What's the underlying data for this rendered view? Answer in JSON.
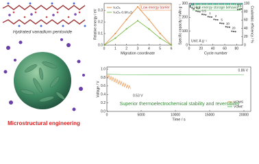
{
  "illustration": {
    "label": "Hydrated vanadium pentoxide",
    "caption": "Microstructural engineering"
  },
  "chart_data": [
    {
      "type": "line",
      "x_label": "Migration coordinate",
      "y_label": "Relative energy / eV",
      "annotations": [
        "Low energy barrier"
      ],
      "x": [
        0,
        1,
        2,
        3,
        4,
        5,
        6
      ],
      "xlim": [
        0,
        6
      ],
      "xticks": [
        0,
        1,
        2,
        3,
        4,
        5,
        6
      ],
      "ylim": [
        0,
        0.36
      ],
      "yticks": [
        {
          "value": 0,
          "label": "0.0"
        },
        0.1,
        0.2,
        0.3
      ],
      "legend": "upper left",
      "series": [
        {
          "name": "V₂O₅",
          "color": "#e8914a",
          "values": [
            0,
            0.1,
            0.22,
            0.33,
            0.22,
            0.1,
            0
          ]
        },
        {
          "name": "V₂O₅·0.9H₂O",
          "color": "#7dba4a",
          "values": [
            0,
            0.06,
            0.14,
            0.21,
            0.14,
            0.06,
            0
          ]
        }
      ]
    },
    {
      "type": "scatter",
      "x_label": "Cycle number",
      "y_label": "Specific capacity / mAh g⁻¹",
      "y2_label": "Coulombic efficiency / %",
      "annotations": [
        "High energy storage behavior",
        "Unit: A g⁻¹"
      ],
      "rate_labels": [
        "0.1",
        "0.2",
        "0.5",
        "1",
        "2",
        "5",
        "10",
        "20",
        "0.1"
      ],
      "x": [
        2,
        5,
        8,
        12,
        15,
        18,
        22,
        25,
        28,
        32,
        35,
        38,
        42,
        45,
        48,
        52,
        55,
        58,
        62,
        65,
        68,
        72,
        75,
        78,
        82,
        85,
        88
      ],
      "xlim": [
        0,
        90
      ],
      "xticks": [
        0,
        20,
        40,
        60,
        80
      ],
      "ylim": [
        0,
        300
      ],
      "yticks": [
        0,
        100,
        200,
        300
      ],
      "y2lim": [
        0,
        100
      ],
      "y2ticks": [
        0,
        20,
        40,
        60,
        80,
        100
      ],
      "series": [
        {
          "name": "Specific capacity",
          "color": "#555555",
          "values": [
            275,
            268,
            262,
            245,
            242,
            240,
            222,
            220,
            218,
            205,
            203,
            202,
            185,
            183,
            182,
            158,
            156,
            155,
            132,
            130,
            129,
            100,
            98,
            97,
            255,
            258,
            260
          ]
        },
        {
          "name": "Coulombic efficiency",
          "color": "#2a9d8f",
          "axis": "y2",
          "values": [
            95,
            98,
            99,
            99,
            99,
            99,
            99,
            99,
            99,
            99,
            99,
            99,
            99,
            99,
            99,
            99,
            99,
            99,
            99,
            99,
            99,
            99,
            99,
            99,
            98,
            99,
            99
          ]
        }
      ]
    },
    {
      "type": "line",
      "x_label": "Time / s",
      "y_label": "Voltage / V",
      "annotations": [
        "0.86 V",
        "0.53 V",
        "Superior thermoelectrochemical stability and reversibility"
      ],
      "xlim": [
        0,
        21000
      ],
      "xticks": [
        0,
        5000,
        10000,
        15000,
        20000
      ],
      "ylim": [
        0,
        1.05
      ],
      "yticks": [
        {
          "value": 0,
          "label": "0.0"
        },
        0.2,
        0.4,
        0.6,
        0.8,
        {
          "value": 1,
          "label": "1.0"
        }
      ],
      "legend": "lower right",
      "series": [
        {
          "name": "VOMS",
          "color": "#e8914a",
          "x": [
            0,
            150,
            300,
            450,
            600,
            750,
            900,
            1050,
            1200,
            1350,
            1500,
            1650,
            1800,
            1950,
            2100,
            2250,
            2400,
            2550,
            2700,
            2850,
            3000,
            3150,
            3300,
            3450
          ],
          "values": [
            0.88,
            0.77,
            0.86,
            0.75,
            0.83,
            0.72,
            0.81,
            0.7,
            0.78,
            0.67,
            0.76,
            0.65,
            0.73,
            0.63,
            0.71,
            0.6,
            0.68,
            0.58,
            0.66,
            0.56,
            0.63,
            0.54,
            0.61,
            0.53
          ]
        },
        {
          "name": "VOMF",
          "color": "#5cb85c",
          "x": [
            0,
            2000,
            20000
          ],
          "values": [
            0.88,
            0.87,
            0.86
          ]
        }
      ]
    }
  ]
}
